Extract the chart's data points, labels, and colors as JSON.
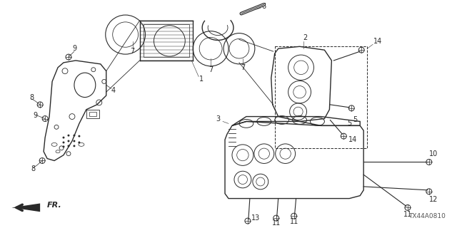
{
  "background_color": "#ffffff",
  "line_color": "#2a2a2a",
  "label_color": "#2a2a2a",
  "figsize": [
    6.4,
    3.2
  ],
  "dpi": 100,
  "diagram_note": "TX44A0810",
  "fr_label": "FR."
}
